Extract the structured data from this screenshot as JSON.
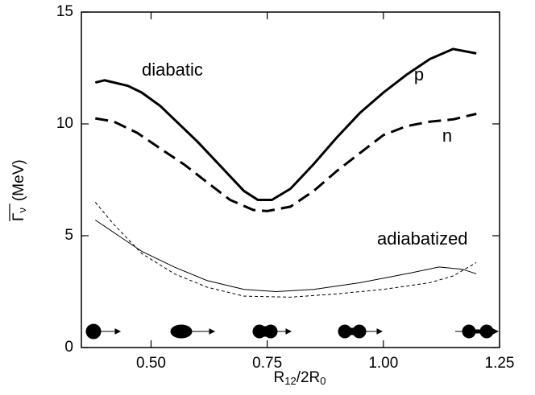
{
  "chart_data": {
    "type": "line",
    "xlabel_parts": [
      "R",
      "12",
      "/2R",
      "0"
    ],
    "ylabel_parts": [
      "Γ",
      "ν",
      "(MeV)"
    ],
    "annotations": [
      "diabatic",
      "adiabatized"
    ],
    "xlim": [
      0.35,
      1.25
    ],
    "xticks": [
      {
        "value": 0.5,
        "label": "0.50"
      },
      {
        "value": 0.75,
        "label": "0.75"
      },
      {
        "value": 1.0,
        "label": "1.00"
      },
      {
        "value": 1.25,
        "label": "1.25"
      }
    ],
    "ylim": [
      0,
      15
    ],
    "yticks": [
      0,
      5,
      10,
      15
    ],
    "series": [
      {
        "name": "p",
        "color": "#000000",
        "style": "solid",
        "width": 3,
        "x": [
          0.38,
          0.4,
          0.45,
          0.48,
          0.52,
          0.55,
          0.6,
          0.65,
          0.7,
          0.73,
          0.76,
          0.8,
          0.85,
          0.9,
          0.95,
          1.0,
          1.05,
          1.1,
          1.15,
          1.2
        ],
        "values": [
          11.85,
          11.95,
          11.7,
          11.4,
          10.8,
          10.2,
          9.2,
          8.1,
          7.0,
          6.6,
          6.6,
          7.1,
          8.2,
          9.4,
          10.5,
          11.4,
          12.2,
          12.9,
          13.35,
          13.15
        ]
      },
      {
        "name": "n",
        "color": "#000000",
        "style": "dashed",
        "width": 3,
        "x": [
          0.38,
          0.42,
          0.47,
          0.52,
          0.57,
          0.62,
          0.67,
          0.72,
          0.75,
          0.8,
          0.85,
          0.9,
          0.95,
          1.0,
          1.05,
          1.1,
          1.15,
          1.2
        ],
        "values": [
          10.25,
          10.1,
          9.6,
          8.9,
          8.2,
          7.4,
          6.6,
          6.15,
          6.1,
          6.3,
          7.0,
          7.9,
          8.7,
          9.5,
          9.9,
          10.1,
          10.2,
          10.45
        ]
      },
      {
        "color": "#000000",
        "style": "solid",
        "width": 1,
        "x": [
          0.38,
          0.43,
          0.48,
          0.55,
          0.62,
          0.7,
          0.77,
          0.85,
          0.95,
          1.05,
          1.12,
          1.17,
          1.2
        ],
        "values": [
          5.7,
          5.0,
          4.3,
          3.6,
          3.0,
          2.6,
          2.5,
          2.6,
          2.9,
          3.3,
          3.6,
          3.5,
          3.3
        ]
      },
      {
        "color": "#000000",
        "style": "dashed",
        "width": 1,
        "x": [
          0.38,
          0.42,
          0.48,
          0.55,
          0.62,
          0.7,
          0.8,
          0.9,
          1.0,
          1.1,
          1.15,
          1.2
        ],
        "values": [
          6.5,
          5.5,
          4.2,
          3.3,
          2.7,
          2.3,
          2.25,
          2.4,
          2.6,
          2.9,
          3.2,
          3.8
        ]
      }
    ]
  }
}
